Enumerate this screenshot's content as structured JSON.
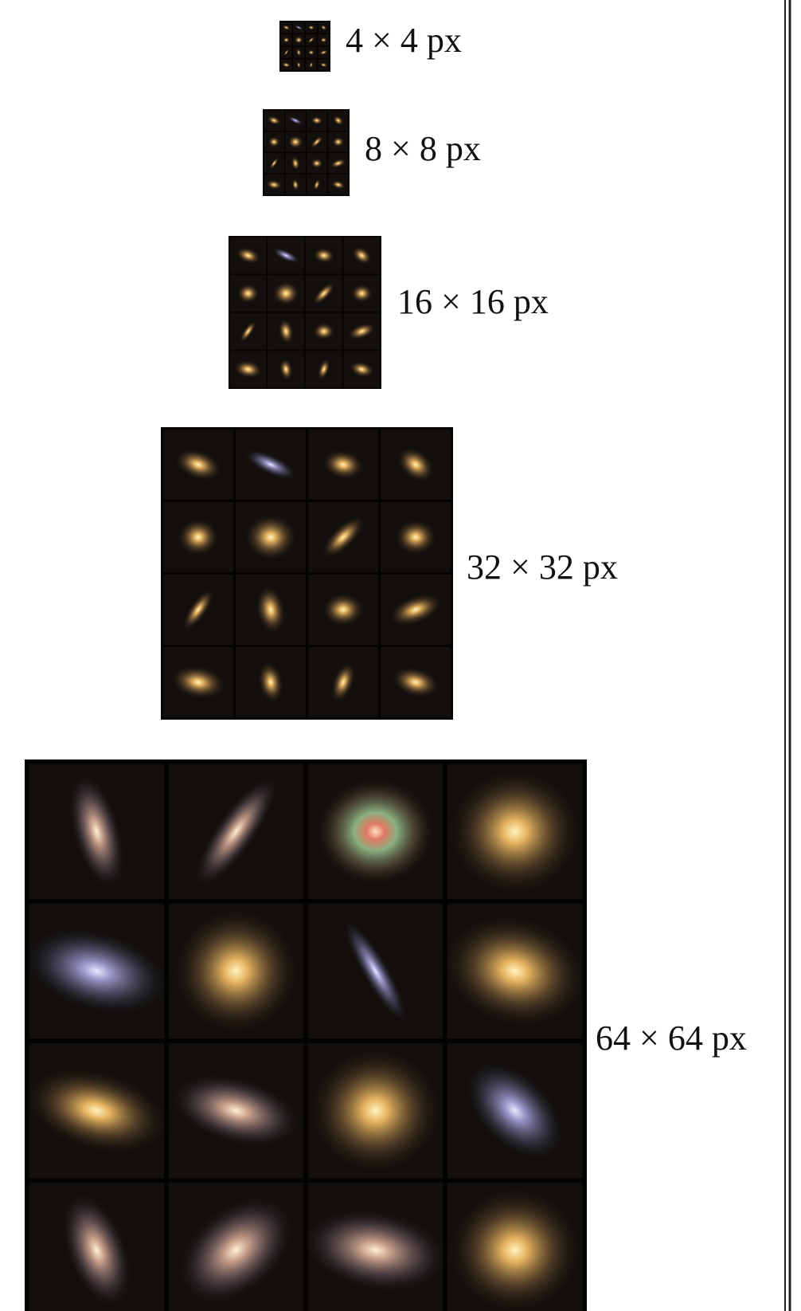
{
  "figure": {
    "panels": [
      {
        "label": "4 × 4 px"
      },
      {
        "label": "8 × 8 px"
      },
      {
        "label": "16 × 16 px"
      },
      {
        "label": "32 × 32 px"
      },
      {
        "label": "64 × 64 px"
      }
    ]
  }
}
